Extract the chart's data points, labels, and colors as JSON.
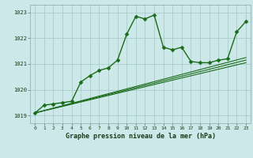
{
  "title": "Graphe pression niveau de la mer (hPa)",
  "bg_color": "#cce8e8",
  "grid_color": "#aacccc",
  "line_color": "#1a6b1a",
  "xlim": [
    -0.5,
    23.5
  ],
  "ylim": [
    1018.7,
    1023.3
  ],
  "yticks": [
    1019,
    1020,
    1021,
    1022,
    1023
  ],
  "xticks": [
    0,
    1,
    2,
    3,
    4,
    5,
    6,
    7,
    8,
    9,
    10,
    11,
    12,
    13,
    14,
    15,
    16,
    17,
    18,
    19,
    20,
    21,
    22,
    23
  ],
  "series": [
    {
      "x": [
        0,
        1,
        2,
        3,
        4,
        5,
        6,
        7,
        8,
        9,
        10,
        11,
        12,
        13,
        14,
        15,
        16,
        17,
        18,
        19,
        20,
        21,
        22,
        23
      ],
      "y": [
        1019.1,
        1019.4,
        1019.45,
        1019.5,
        1019.55,
        1020.3,
        1020.55,
        1020.75,
        1020.85,
        1021.15,
        1022.15,
        1022.85,
        1022.75,
        1022.9,
        1021.65,
        1021.55,
        1021.65,
        1021.1,
        1021.05,
        1021.05,
        1021.15,
        1021.2,
        1022.25,
        1022.65
      ],
      "marker": "D",
      "markersize": 2.5,
      "linewidth": 1.0
    },
    {
      "x": [
        0,
        23
      ],
      "y": [
        1019.1,
        1021.05
      ],
      "marker": null,
      "markersize": 0,
      "linewidth": 0.8
    },
    {
      "x": [
        0,
        23
      ],
      "y": [
        1019.1,
        1021.15
      ],
      "marker": null,
      "markersize": 0,
      "linewidth": 0.8
    },
    {
      "x": [
        0,
        23
      ],
      "y": [
        1019.1,
        1021.25
      ],
      "marker": null,
      "markersize": 0,
      "linewidth": 0.8
    }
  ],
  "figwidth": 3.2,
  "figheight": 2.0,
  "dpi": 100
}
